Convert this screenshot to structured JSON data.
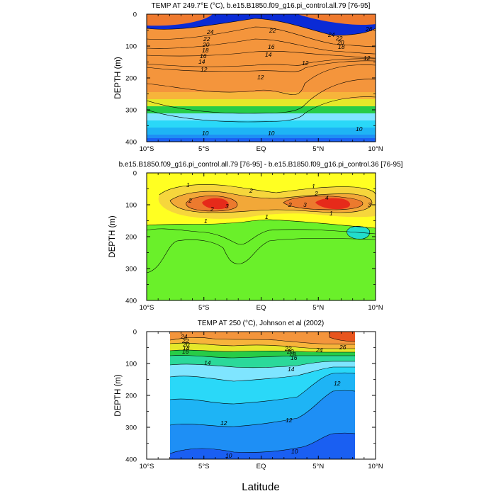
{
  "colors": {
    "temp_levels": [
      "#0a2bd6",
      "#1a5ff2",
      "#1e8ff5",
      "#1eb4f5",
      "#2ad8f8",
      "#7fe5ff",
      "#2bd99a",
      "#27cc47",
      "#9be02c",
      "#e5e82a",
      "#f8d72a",
      "#f7b43b",
      "#f4953c",
      "#ef7a2e",
      "#e8541d"
    ],
    "diff_levels": [
      "#0aa6a0",
      "#22ddcc",
      "#6af02a",
      "#ffff22",
      "#f6d63c",
      "#f2a838",
      "#ec7a2e",
      "#e62a1a"
    ],
    "line": "#000000"
  },
  "xaxis": {
    "label": "Latitude",
    "ticks": [
      "10°S",
      "5°S",
      "EQ",
      "5°N",
      "10°N"
    ],
    "tick_values": [
      -10,
      -5,
      0,
      5,
      10
    ]
  },
  "chart_data": [
    {
      "type": "heatmap",
      "title": "TEMP AT 249.7°E (°C), b.e15.B1850.f09_g16.pi_control.all.79 [76-95]",
      "ylabel": "DEPTH (m)",
      "xlim": [
        -10,
        10
      ],
      "ylim": [
        400,
        0
      ],
      "yticks": [
        0,
        100,
        200,
        300,
        400
      ],
      "contour_labels": [
        "24",
        "22",
        "20",
        "18",
        "16",
        "14",
        "12",
        "12",
        "12",
        "14",
        "16",
        "22",
        "24",
        "22",
        "20",
        "18",
        "26",
        "12",
        "10",
        "10",
        "10"
      ]
    },
    {
      "type": "heatmap",
      "title": "b.e15.B1850.f09_g16.pi_control.all.79 [76-95] - b.e15.B1850.f09_g16.pi_control.36 [76-95]",
      "ylabel": "DEPTH (m)",
      "xlim": [
        -10,
        10
      ],
      "ylim": [
        400,
        0
      ],
      "yticks": [
        0,
        100,
        200,
        300,
        400
      ],
      "contour_labels": [
        "1",
        "2",
        "2",
        "3",
        "2",
        "1",
        "2",
        "3",
        "1",
        "2",
        "4",
        "3",
        "1",
        "1"
      ]
    },
    {
      "type": "heatmap",
      "title": "TEMP AT 250 (°C), Johnson et al (2002)",
      "ylabel": "DEPTH (m)",
      "xlim": [
        -10,
        10
      ],
      "ylim": [
        400,
        0
      ],
      "yticks": [
        0,
        100,
        200,
        300,
        400
      ],
      "contour_labels": [
        "24",
        "22",
        "20",
        "18",
        "16",
        "14",
        "14",
        "22",
        "20",
        "18",
        "16",
        "24",
        "26",
        "12",
        "12",
        "12",
        "10",
        "10"
      ]
    }
  ]
}
